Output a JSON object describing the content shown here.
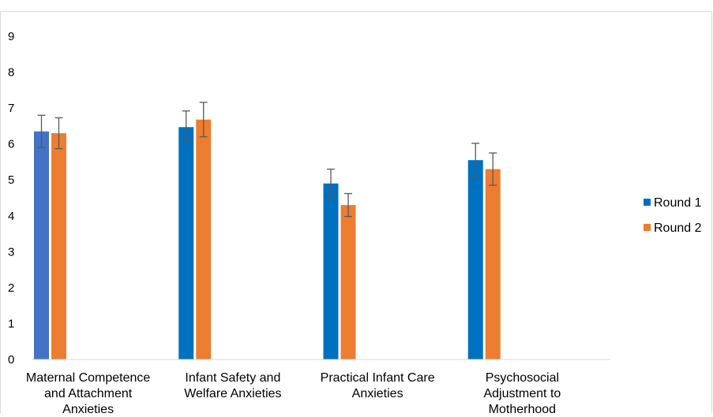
{
  "chart_data": {
    "type": "bar",
    "title": "",
    "xlabel": "",
    "ylabel": "",
    "ylim": [
      0,
      9
    ],
    "yticks": [
      0,
      1,
      2,
      3,
      4,
      5,
      6,
      7,
      8,
      9
    ],
    "grid": false,
    "legend_position": "right",
    "categories": [
      [
        "Maternal Competence",
        "and Attachment",
        "Anxieties"
      ],
      [
        "Infant Safety and",
        "Welfare Anxieties"
      ],
      [
        "Practical Infant Care",
        "Anxieties"
      ],
      [
        "Psychosocial",
        "Adjustment to",
        "Motherhood"
      ]
    ],
    "series": [
      {
        "name": "Round 1",
        "color": "#0070c0",
        "values": [
          6.35,
          6.47,
          4.9,
          5.55
        ],
        "error": [
          0.45,
          0.45,
          0.4,
          0.47
        ]
      },
      {
        "name": "Round 2",
        "color": "#ed7d31",
        "values": [
          6.3,
          6.68,
          4.3,
          5.3
        ],
        "error": [
          0.43,
          0.48,
          0.32,
          0.45
        ]
      }
    ],
    "first_bar_color": "#4472c4"
  }
}
